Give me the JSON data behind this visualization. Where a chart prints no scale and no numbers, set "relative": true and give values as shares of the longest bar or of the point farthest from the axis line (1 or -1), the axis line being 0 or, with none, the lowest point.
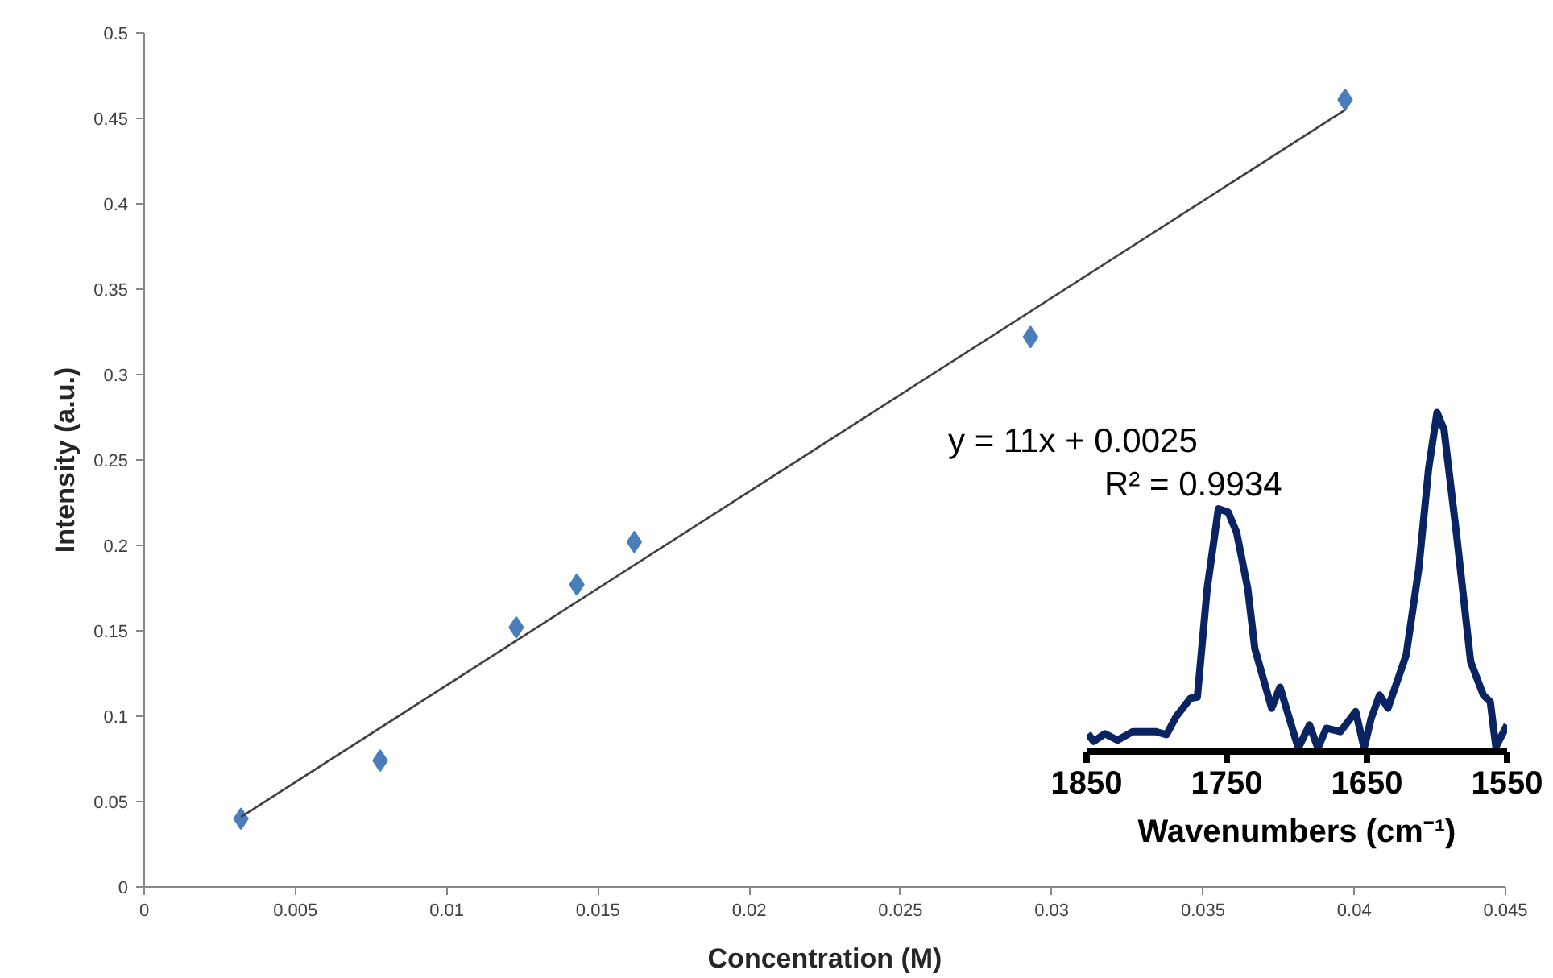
{
  "chart_data": [
    {
      "type": "scatter",
      "xlabel": "Concentration (M)",
      "ylabel": "Intensity (a.u.)",
      "xlim": [
        0,
        0.045
      ],
      "xticks": [
        0,
        0.005,
        0.01,
        0.015,
        0.02,
        0.025,
        0.03,
        0.035,
        0.04,
        0.045
      ],
      "ylim": [
        0,
        0.5
      ],
      "yticks": [
        0,
        0.05,
        0.1,
        0.15,
        0.2,
        0.25,
        0.3,
        0.35,
        0.4,
        0.45,
        0.5
      ],
      "grid": false,
      "series": [
        {
          "type": "scatter",
          "marker": "diamond",
          "color": "#4a7ebb",
          "x": [
            0.0032,
            0.0078,
            0.0123,
            0.0143,
            0.0162,
            0.0293,
            0.0397
          ],
          "values": [
            0.04,
            0.074,
            0.152,
            0.177,
            0.202,
            0.322,
            0.461
          ]
        },
        {
          "type": "line",
          "marker": "none",
          "color": "#404040",
          "x": [
            0.0032,
            0.0397
          ],
          "values": [
            0.041,
            0.455
          ]
        }
      ],
      "annotations": [
        "y = 11x + 0.0025",
        "R² = 0.9934"
      ]
    },
    {
      "type": "line",
      "xlabel": "Wavenumbers (cm⁻¹)",
      "xlim": [
        1850,
        1550
      ],
      "xticks": [
        1850,
        1750,
        1650,
        1550
      ],
      "relative": true,
      "tick_labels": "x",
      "grid": false,
      "line_style": "solid",
      "series": [
        {
          "color": "#0a2463",
          "x": [
            1849,
            1845,
            1837,
            1828,
            1817,
            1801,
            1793,
            1786,
            1776,
            1771,
            1764,
            1756,
            1749,
            1743,
            1735,
            1730,
            1718,
            1712,
            1699,
            1691,
            1685,
            1679,
            1669,
            1658,
            1652,
            1647,
            1641,
            1635,
            1622,
            1613,
            1606,
            1600,
            1595,
            1586,
            1576,
            1567,
            1562,
            1558,
            1550
          ],
          "values": [
            0.053,
            0.03,
            0.053,
            0.034,
            0.059,
            0.059,
            0.05,
            0.104,
            0.157,
            0.161,
            0.48,
            0.716,
            0.706,
            0.647,
            0.48,
            0.304,
            0.128,
            0.19,
            0.01,
            0.079,
            0.01,
            0.069,
            0.059,
            0.118,
            0.01,
            0.098,
            0.167,
            0.128,
            0.285,
            0.54,
            0.834,
            1,
            0.95,
            0.638,
            0.265,
            0.167,
            0.147,
            0.014,
            0.079
          ]
        }
      ]
    }
  ]
}
